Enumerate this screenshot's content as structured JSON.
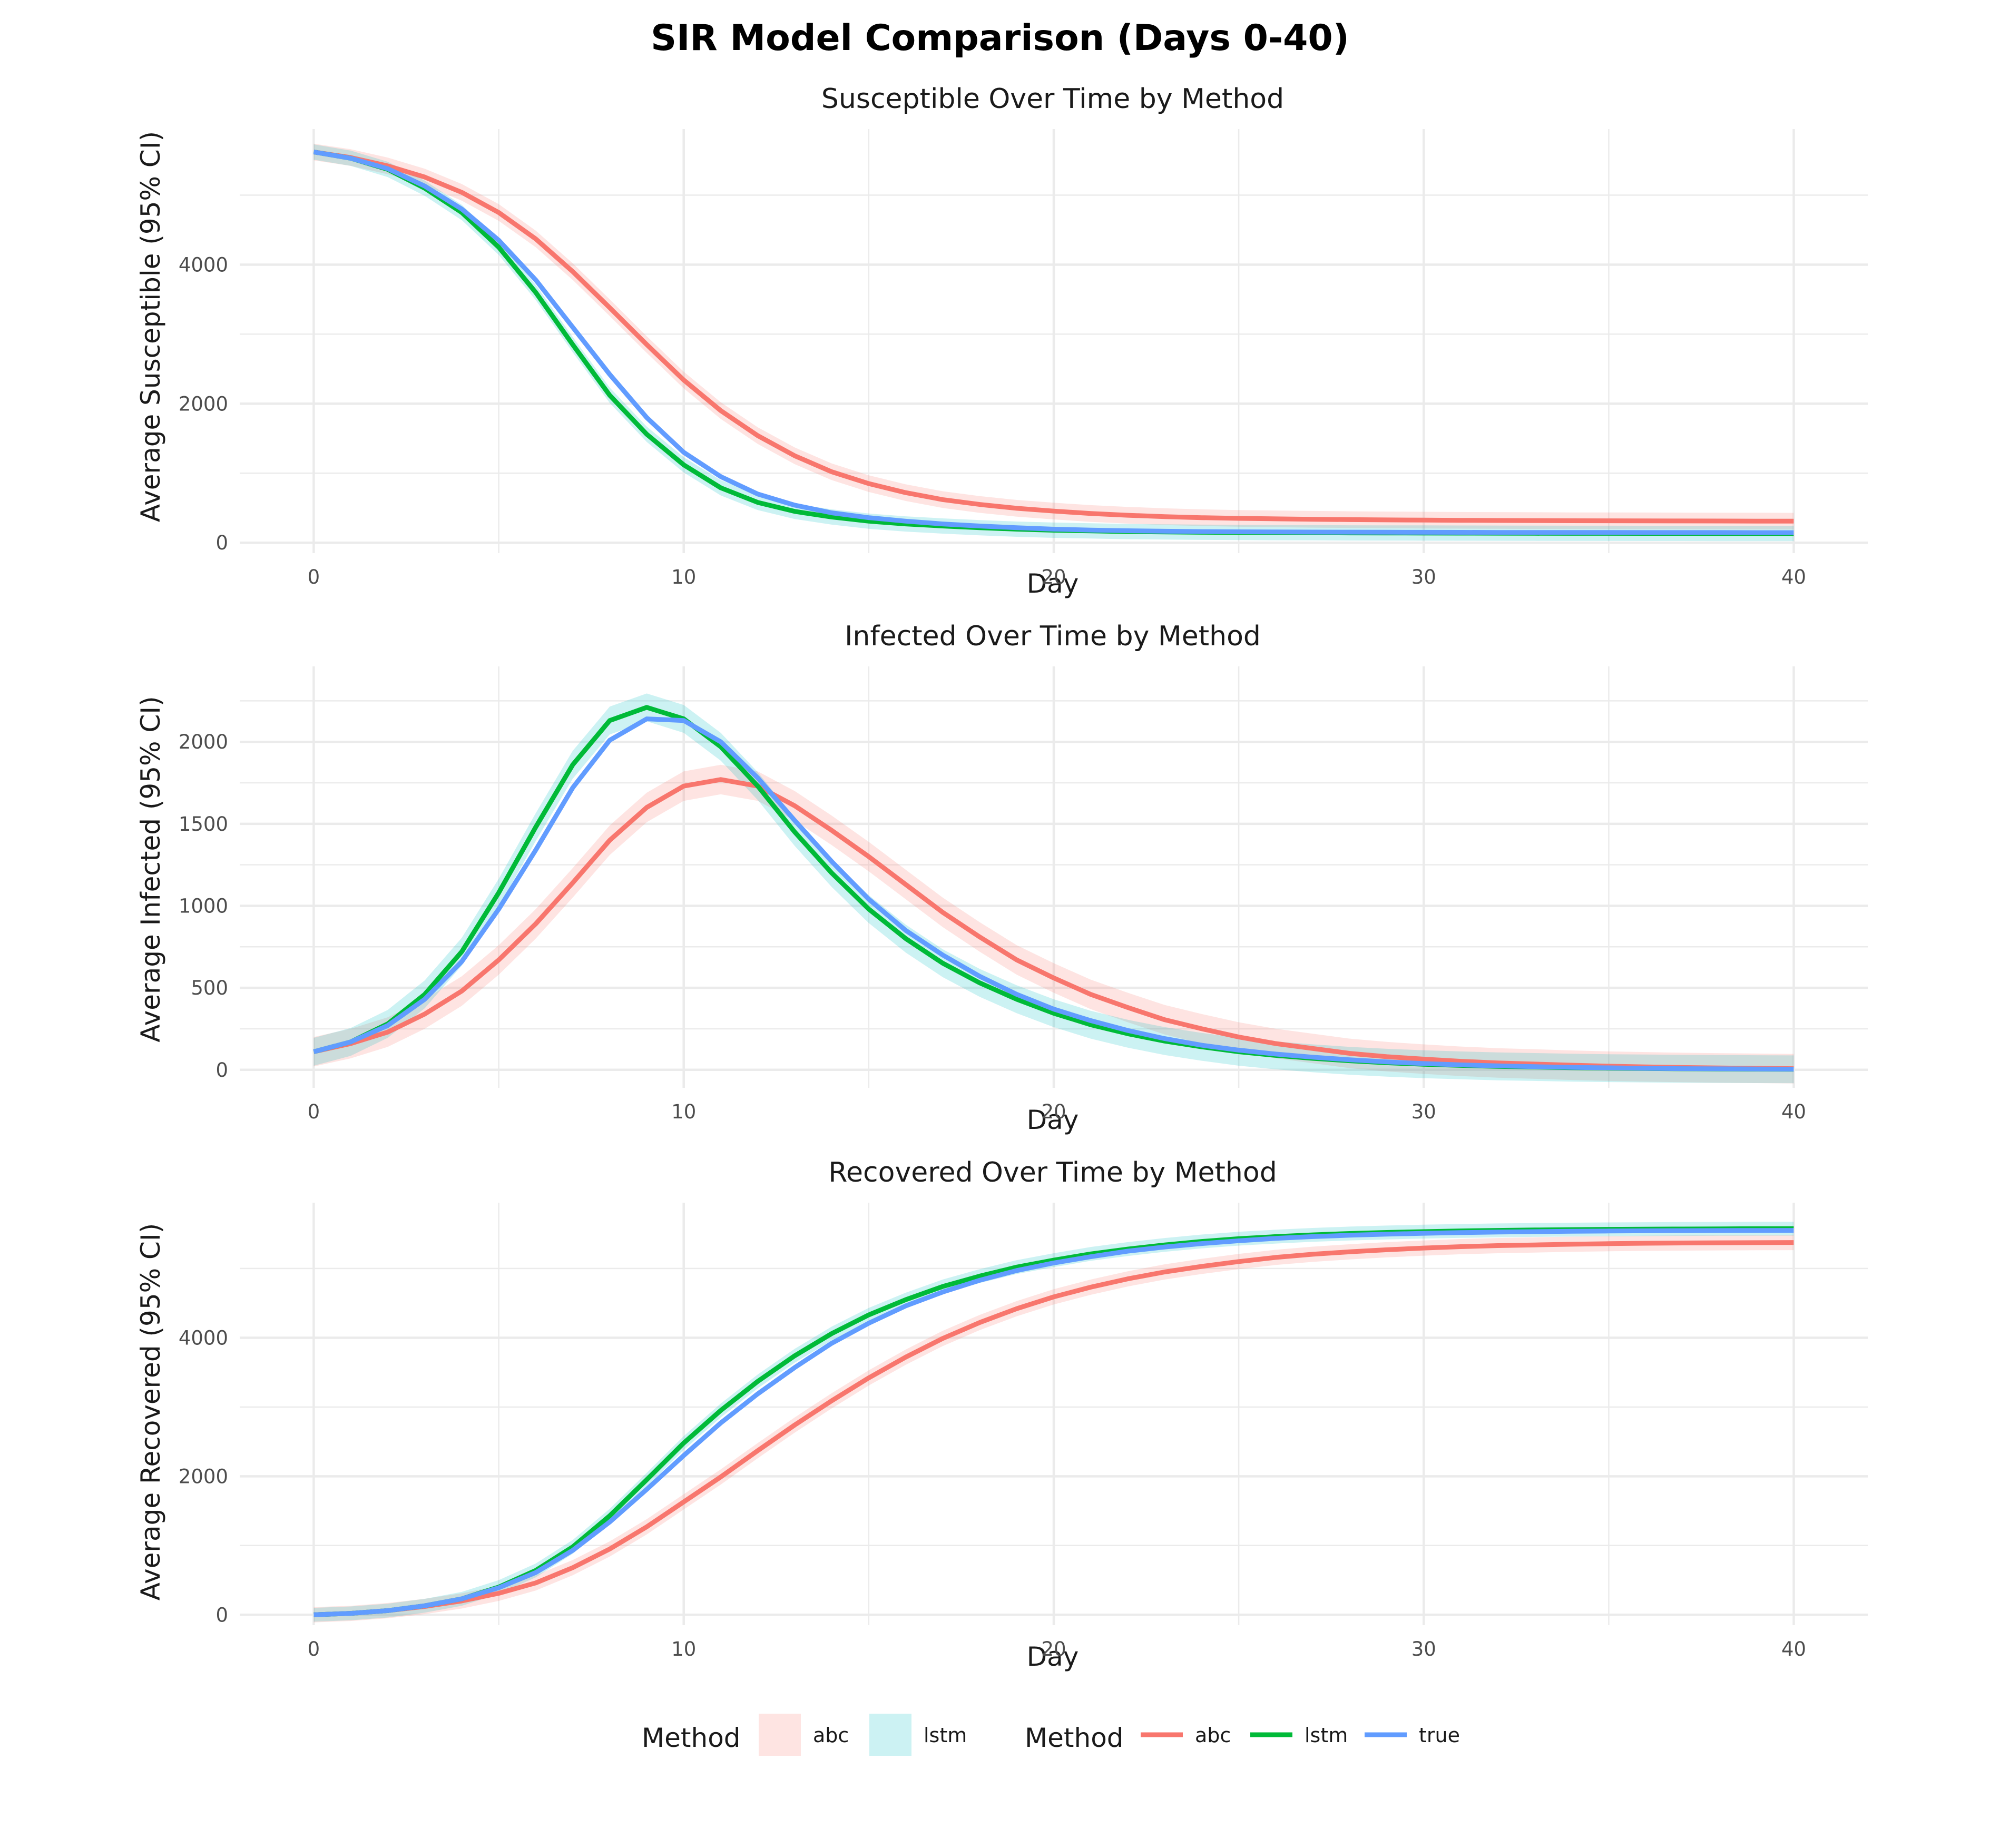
{
  "title": "SIR Model Comparison (Days 0-40)",
  "colors": {
    "abc": "#F8766D",
    "lstm": "#00BA38",
    "true": "#619CFF",
    "band_abc": "#F8766D",
    "band_lstm": "#00BFC4",
    "grid": "#EBEBEB"
  },
  "legend": {
    "fill_title": "Method",
    "fill_items": [
      "abc",
      "lstm"
    ],
    "line_title": "Method",
    "line_items": [
      "abc",
      "lstm",
      "true"
    ],
    "placement": "bottom"
  },
  "chart_data": [
    {
      "type": "line",
      "title": "Susceptible Over Time by Method",
      "xlabel": "Day",
      "ylabel": "Average Susceptible (95% CI)",
      "xlim": [
        -2,
        42
      ],
      "ylim": [
        -150,
        5950
      ],
      "xticks": [
        0,
        10,
        20,
        30,
        40
      ],
      "yticks": [
        0,
        2000,
        4000
      ],
      "grid": true,
      "x": [
        0,
        1,
        2,
        3,
        4,
        5,
        6,
        7,
        8,
        9,
        10,
        11,
        12,
        13,
        14,
        15,
        16,
        17,
        18,
        19,
        20,
        21,
        22,
        23,
        24,
        25,
        26,
        27,
        28,
        29,
        30,
        31,
        32,
        33,
        34,
        35,
        36,
        37,
        38,
        39,
        40
      ],
      "series": [
        {
          "name": "abc",
          "band": 120,
          "values": [
            5620,
            5540,
            5420,
            5260,
            5040,
            4750,
            4370,
            3900,
            3380,
            2850,
            2340,
            1900,
            1540,
            1250,
            1020,
            850,
            720,
            620,
            550,
            495,
            455,
            420,
            395,
            375,
            360,
            350,
            343,
            337,
            332,
            328,
            325,
            322,
            320,
            318,
            316,
            315,
            314,
            313,
            312,
            311,
            310
          ]
        },
        {
          "name": "lstm",
          "band": 110,
          "values": [
            5620,
            5530,
            5370,
            5100,
            4750,
            4250,
            3600,
            2850,
            2120,
            1560,
            1120,
            790,
            580,
            450,
            370,
            310,
            270,
            240,
            215,
            195,
            180,
            170,
            160,
            155,
            150,
            147,
            145,
            143,
            141,
            140,
            139,
            138,
            137,
            136,
            135,
            135,
            134,
            134,
            133,
            133,
            133
          ]
        },
        {
          "name": "true",
          "values": [
            5620,
            5530,
            5380,
            5130,
            4800,
            4350,
            3780,
            3100,
            2420,
            1800,
            1300,
            950,
            700,
            540,
            430,
            360,
            310,
            270,
            240,
            215,
            195,
            182,
            172,
            165,
            160,
            157,
            155,
            153,
            152,
            151,
            150,
            149,
            148,
            148,
            147,
            147,
            146,
            146,
            146,
            145,
            145
          ]
        }
      ]
    },
    {
      "type": "line",
      "title": "Infected Over Time by Method",
      "xlabel": "Day",
      "ylabel": "Average Infected (95% CI)",
      "xlim": [
        -2,
        42
      ],
      "ylim": [
        -110,
        2460
      ],
      "xticks": [
        0,
        10,
        20,
        30,
        40
      ],
      "yticks": [
        0,
        500,
        1000,
        1500,
        2000
      ],
      "grid": true,
      "x": [
        0,
        1,
        2,
        3,
        4,
        5,
        6,
        7,
        8,
        9,
        10,
        11,
        12,
        13,
        14,
        15,
        16,
        17,
        18,
        19,
        20,
        21,
        22,
        23,
        24,
        25,
        26,
        27,
        28,
        29,
        30,
        31,
        32,
        33,
        34,
        35,
        36,
        37,
        38,
        39,
        40
      ],
      "series": [
        {
          "name": "abc",
          "band": 90,
          "values": [
            110,
            160,
            230,
            340,
            480,
            670,
            890,
            1140,
            1400,
            1600,
            1730,
            1770,
            1730,
            1610,
            1460,
            1300,
            1130,
            960,
            810,
            670,
            560,
            460,
            380,
            305,
            250,
            200,
            160,
            130,
            100,
            80,
            65,
            52,
            42,
            35,
            28,
            22,
            18,
            14,
            11,
            9,
            7
          ]
        },
        {
          "name": "lstm",
          "band": 85,
          "values": [
            110,
            170,
            280,
            460,
            720,
            1080,
            1480,
            1860,
            2130,
            2210,
            2140,
            1970,
            1730,
            1450,
            1200,
            980,
            800,
            650,
            530,
            430,
            345,
            275,
            220,
            175,
            140,
            110,
            88,
            70,
            55,
            43,
            34,
            27,
            21,
            17,
            13,
            10,
            8,
            6,
            5,
            4,
            3
          ]
        },
        {
          "name": "true",
          "values": [
            110,
            170,
            270,
            430,
            660,
            980,
            1340,
            1720,
            2010,
            2140,
            2130,
            2000,
            1780,
            1520,
            1270,
            1040,
            850,
            700,
            570,
            460,
            370,
            300,
            240,
            190,
            150,
            120,
            96,
            77,
            61,
            48,
            38,
            30,
            24,
            19,
            15,
            12,
            9,
            7,
            6,
            5,
            4
          ]
        }
      ]
    },
    {
      "type": "line",
      "title": "Recovered Over Time by Method",
      "xlabel": "Day",
      "ylabel": "Average Recovered (95% CI)",
      "xlim": [
        -2,
        42
      ],
      "ylim": [
        -150,
        5950
      ],
      "xticks": [
        0,
        10,
        20,
        30,
        40
      ],
      "yticks": [
        0,
        2000,
        4000
      ],
      "grid": true,
      "x": [
        0,
        1,
        2,
        3,
        4,
        5,
        6,
        7,
        8,
        9,
        10,
        11,
        12,
        13,
        14,
        15,
        16,
        17,
        18,
        19,
        20,
        21,
        22,
        23,
        24,
        25,
        26,
        27,
        28,
        29,
        30,
        31,
        32,
        33,
        34,
        35,
        36,
        37,
        38,
        39,
        40
      ],
      "series": [
        {
          "name": "abc",
          "band": 110,
          "values": [
            0,
            20,
            60,
            120,
            200,
            310,
            460,
            680,
            950,
            1270,
            1630,
            1990,
            2370,
            2740,
            3090,
            3420,
            3720,
            3990,
            4220,
            4420,
            4590,
            4730,
            4850,
            4950,
            5030,
            5100,
            5160,
            5205,
            5240,
            5270,
            5295,
            5315,
            5330,
            5340,
            5350,
            5358,
            5364,
            5368,
            5371,
            5373,
            5375
          ]
        },
        {
          "name": "lstm",
          "band": 100,
          "values": [
            0,
            20,
            60,
            130,
            230,
            400,
            640,
            980,
            1430,
            1950,
            2480,
            2950,
            3370,
            3740,
            4060,
            4330,
            4550,
            4740,
            4890,
            5020,
            5120,
            5210,
            5280,
            5340,
            5390,
            5430,
            5460,
            5485,
            5505,
            5520,
            5532,
            5542,
            5550,
            5556,
            5561,
            5565,
            5568,
            5570,
            5572,
            5574,
            5575
          ]
        },
        {
          "name": "true",
          "values": [
            0,
            20,
            60,
            130,
            230,
            390,
            610,
            930,
            1340,
            1810,
            2300,
            2770,
            3190,
            3570,
            3920,
            4210,
            4460,
            4660,
            4830,
            4970,
            5080,
            5170,
            5250,
            5310,
            5360,
            5400,
            5435,
            5460,
            5480,
            5495,
            5508,
            5518,
            5526,
            5532,
            5537,
            5541,
            5544,
            5546,
            5548,
            5549,
            5550
          ]
        }
      ]
    }
  ]
}
